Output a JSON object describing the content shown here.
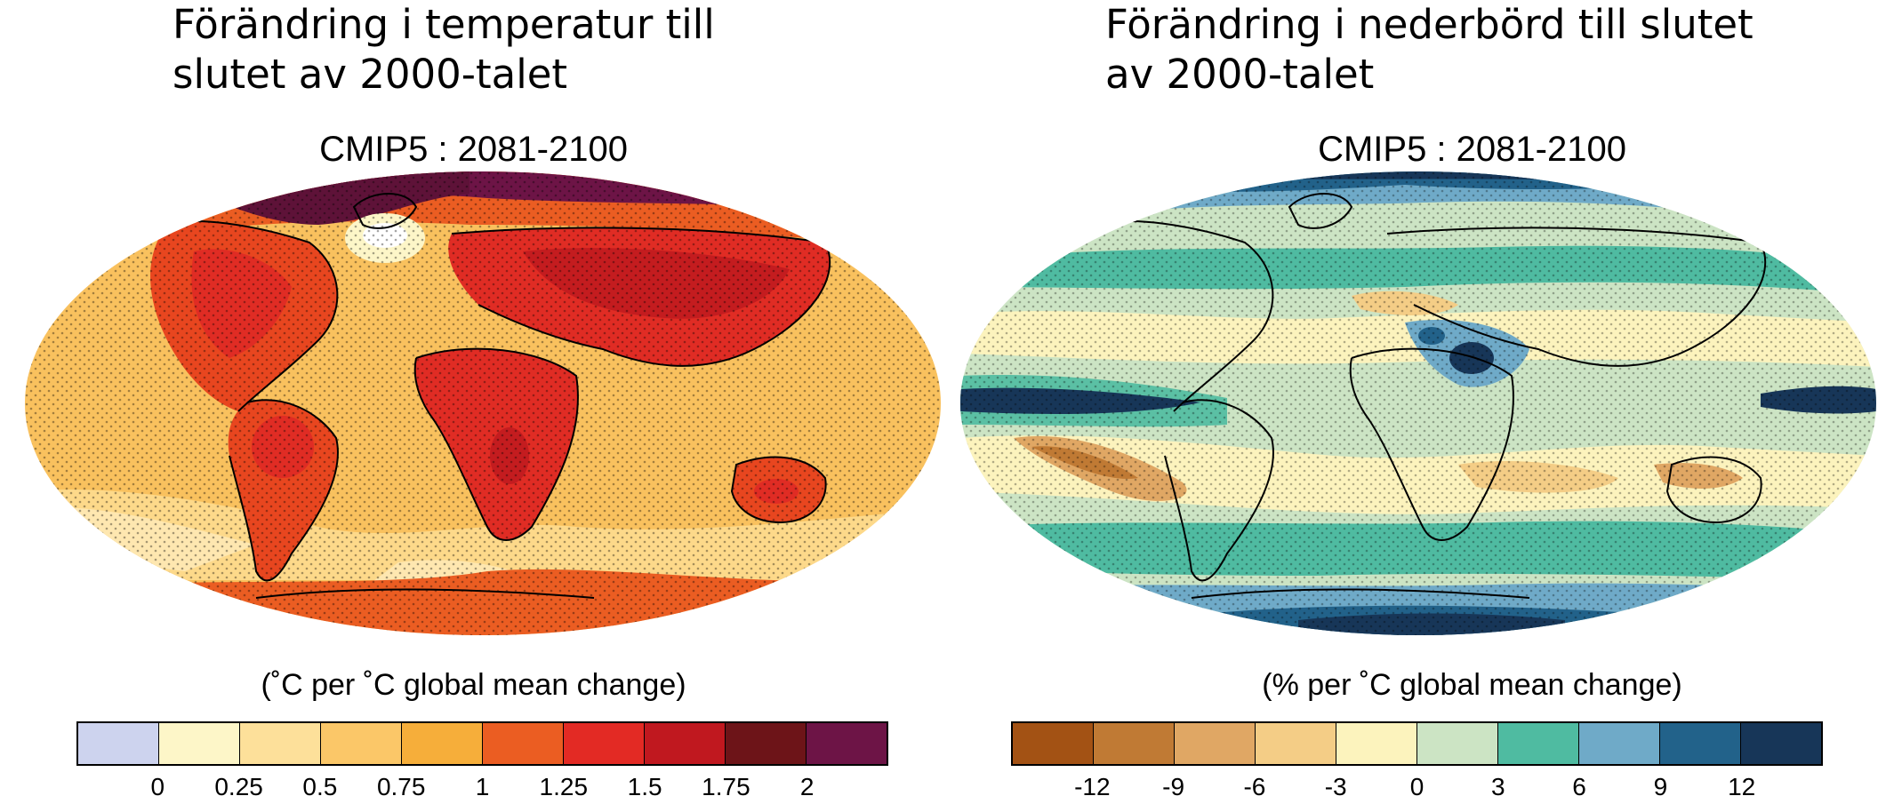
{
  "panels": [
    {
      "id": "temperature",
      "title": "Förändring i temperatur till\nslutet av 2000-talet",
      "subtitle": "CMIP5 : 2081-2100",
      "units": "(˚C per ˚C global mean change)",
      "colorbar": {
        "colors": [
          "#cdd3ee",
          "#fdf6c8",
          "#fde09a",
          "#fbc768",
          "#f6ae3a",
          "#eb5d22",
          "#e32a24",
          "#c0181f",
          "#6d1418",
          "#6d1446"
        ],
        "ticks": [
          "0",
          "0.25",
          "0.5",
          "0.75",
          "1",
          "1.25",
          "1.5",
          "1.75",
          "2"
        ]
      },
      "map_palette": {
        "ocean_base": "#f9c15e",
        "ocean_light": "#fdd98a",
        "ocean_pale": "#fee7b0",
        "land_warm": "#e8461f",
        "land_hot": "#e02c24",
        "land_very_hot": "#c41c1f",
        "arctic": "#6d1446",
        "arctic_dark": "#5e1238",
        "north_atlantic": "#fdf6c8",
        "antarctic": "#eb5d22"
      }
    },
    {
      "id": "precipitation",
      "title": "Förändring i nederbörd till slutet\nav 2000-talet",
      "subtitle": "CMIP5 : 2081-2100",
      "units": "(% per ˚C global mean change)",
      "colorbar": {
        "colors": [
          "#a35214",
          "#c07a34",
          "#e0a764",
          "#f4cd86",
          "#fcf3bd",
          "#cce4c4",
          "#4fbba1",
          "#6faac8",
          "#22628a",
          "#173658"
        ],
        "ticks": [
          "-12",
          "-9",
          "-6",
          "-3",
          "0",
          "3",
          "6",
          "9",
          "12"
        ]
      },
      "map_palette": {
        "ocean_base": "#cce4c4",
        "subtropic_dry": "#fcf3bd",
        "dry": "#f4cd86",
        "very_dry": "#e0a764",
        "wet": "#4fbba1",
        "wetter": "#6faac8",
        "very_wet": "#22628a",
        "wettest": "#173658"
      }
    }
  ]
}
